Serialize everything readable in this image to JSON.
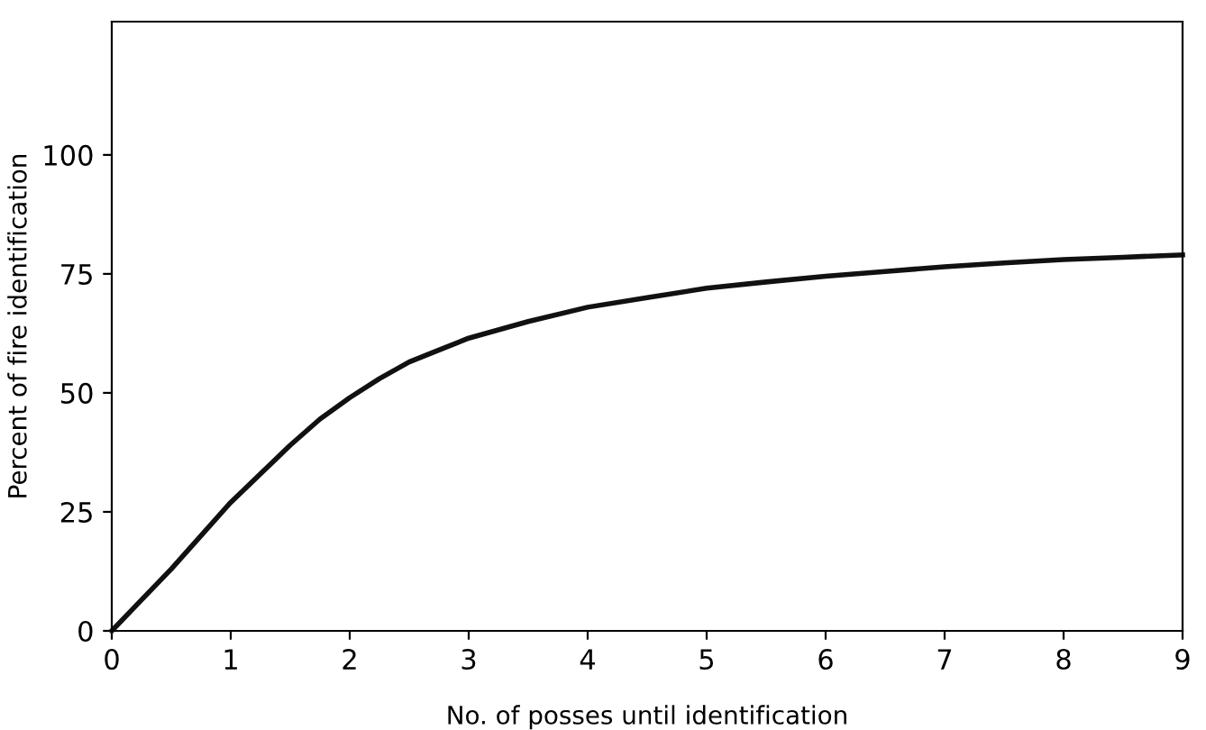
{
  "chart_data": {
    "type": "line",
    "xlabel": "No. of posses until identification",
    "ylabel": "Percent of fire identification",
    "x": [
      0,
      0.25,
      0.5,
      0.75,
      1,
      1.25,
      1.5,
      1.75,
      2,
      2.25,
      2.5,
      2.75,
      3,
      3.5,
      4,
      4.5,
      5,
      5.5,
      6,
      6.5,
      7,
      7.5,
      8,
      8.5,
      9
    ],
    "series": [
      {
        "color": "#111111",
        "values": [
          0,
          6.5,
          13,
          20,
          27,
          33,
          39,
          44.5,
          49,
          53,
          56.5,
          59,
          61.5,
          65,
          68,
          70,
          72,
          73.3,
          74.5,
          75.5,
          76.5,
          77.3,
          78,
          78.5,
          79
        ]
      }
    ],
    "xlim": [
      0,
      9
    ],
    "xticks": [
      0,
      1,
      2,
      3,
      4,
      5,
      6,
      7,
      8,
      9
    ],
    "ylim": [
      0,
      128
    ],
    "yticks": [
      0,
      25,
      50,
      75,
      100
    ],
    "grid": false,
    "legend": false,
    "marker": "none",
    "line_style": "solid"
  }
}
